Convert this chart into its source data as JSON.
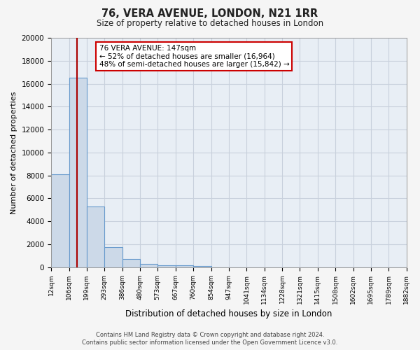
{
  "title": "76, VERA AVENUE, LONDON, N21 1RR",
  "subtitle": "Size of property relative to detached houses in London",
  "xlabel": "Distribution of detached houses by size in London",
  "ylabel": "Number of detached properties",
  "bar_color": "#ccd9e8",
  "bar_edge_color": "#6699cc",
  "background_color": "#e8eef5",
  "grid_color": "#d0d8e4",
  "bin_edges": [
    12,
    106,
    199,
    293,
    386,
    480,
    573,
    667,
    760,
    854,
    947,
    1041,
    1134,
    1228,
    1321,
    1415,
    1508,
    1602,
    1695,
    1789,
    1882
  ],
  "bin_heights": [
    8100,
    16500,
    5300,
    1750,
    700,
    300,
    200,
    150,
    100,
    0,
    0,
    0,
    0,
    0,
    0,
    0,
    0,
    0,
    0,
    0
  ],
  "red_line_x": 147,
  "annotation_title": "76 VERA AVENUE: 147sqm",
  "annotation_line1": "← 52% of detached houses are smaller (16,964)",
  "annotation_line2": "48% of semi-detached houses are larger (15,842) →",
  "annotation_box_color": "#ffffff",
  "annotation_border_color": "#cc0000",
  "red_line_color": "#aa0000",
  "ylim": [
    0,
    20000
  ],
  "yticks": [
    0,
    2000,
    4000,
    6000,
    8000,
    10000,
    12000,
    14000,
    16000,
    18000,
    20000
  ],
  "tick_labels": [
    "12sqm",
    "106sqm",
    "199sqm",
    "293sqm",
    "386sqm",
    "480sqm",
    "573sqm",
    "667sqm",
    "760sqm",
    "854sqm",
    "947sqm",
    "1041sqm",
    "1134sqm",
    "1228sqm",
    "1321sqm",
    "1415sqm",
    "1508sqm",
    "1602sqm",
    "1695sqm",
    "1789sqm",
    "1882sqm"
  ],
  "footnote1": "Contains HM Land Registry data © Crown copyright and database right 2024.",
  "footnote2": "Contains public sector information licensed under the Open Government Licence v3.0.",
  "fig_width": 6.0,
  "fig_height": 5.0,
  "dpi": 100
}
